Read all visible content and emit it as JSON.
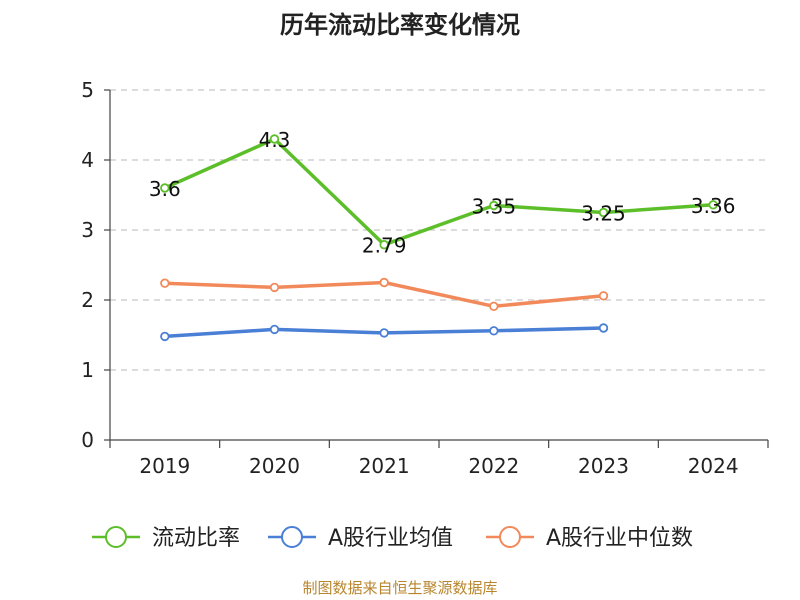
{
  "chart_data": {
    "type": "line",
    "title": "历年流动比率变化情况",
    "categories": [
      "2019",
      "2020",
      "2021",
      "2022",
      "2023",
      "2024"
    ],
    "y_ticks": [
      "0",
      "1",
      "2",
      "3",
      "4",
      "5"
    ],
    "ylim": [
      0,
      5
    ],
    "grid": true,
    "legend_position": "bottom",
    "series": [
      {
        "name": "流动比率",
        "color": "#5CBF2A",
        "values": [
          3.6,
          4.3,
          2.79,
          3.35,
          3.25,
          3.36
        ],
        "labels": [
          "3.6",
          "4.3",
          "2.79",
          "3.35",
          "3.25",
          "3.36"
        ]
      },
      {
        "name": "A股行业均值",
        "color": "#4A7FD6",
        "values": [
          1.48,
          1.58,
          1.53,
          1.56,
          1.6,
          null
        ]
      },
      {
        "name": "A股行业中位数",
        "color": "#F2895A",
        "values": [
          2.24,
          2.18,
          2.25,
          1.91,
          2.06,
          null
        ]
      }
    ]
  },
  "footer": {
    "source": "制图数据来自恒生聚源数据库"
  }
}
